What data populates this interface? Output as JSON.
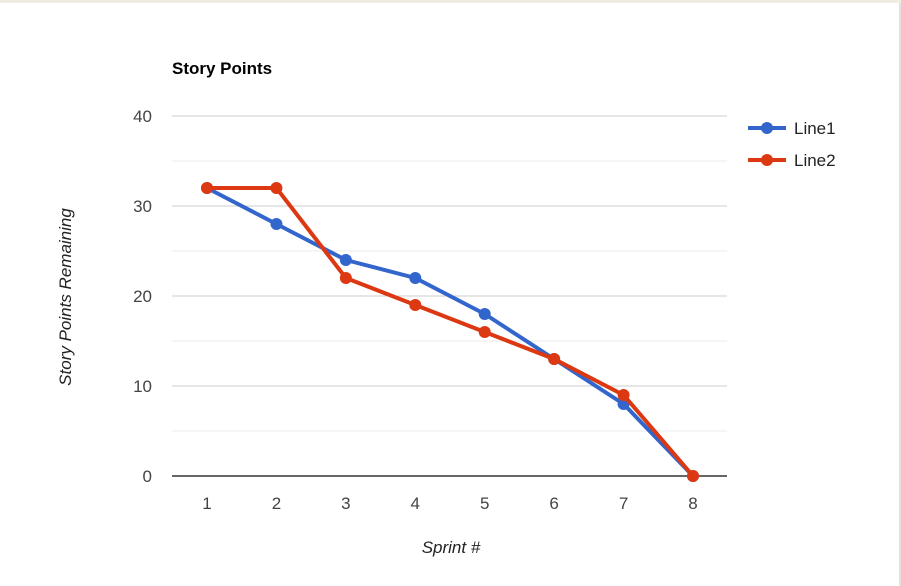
{
  "chart_data": {
    "type": "line",
    "title": "Story Points",
    "xlabel": "Sprint #",
    "ylabel": "Story Points Remaining",
    "x": [
      "1",
      "2",
      "3",
      "4",
      "5",
      "6",
      "7",
      "8"
    ],
    "yticks": [
      "0",
      "10",
      "20",
      "30",
      "40"
    ],
    "ylim": [
      0,
      40
    ],
    "grid": true,
    "legend_position": "right",
    "series": [
      {
        "name": "Line1",
        "color": "#3366cc",
        "values": [
          32,
          28,
          24,
          22,
          18,
          13,
          8,
          0
        ]
      },
      {
        "name": "Line2",
        "color": "#dc3912",
        "values": [
          32,
          32,
          22,
          19,
          16,
          13,
          9,
          0
        ]
      }
    ]
  }
}
